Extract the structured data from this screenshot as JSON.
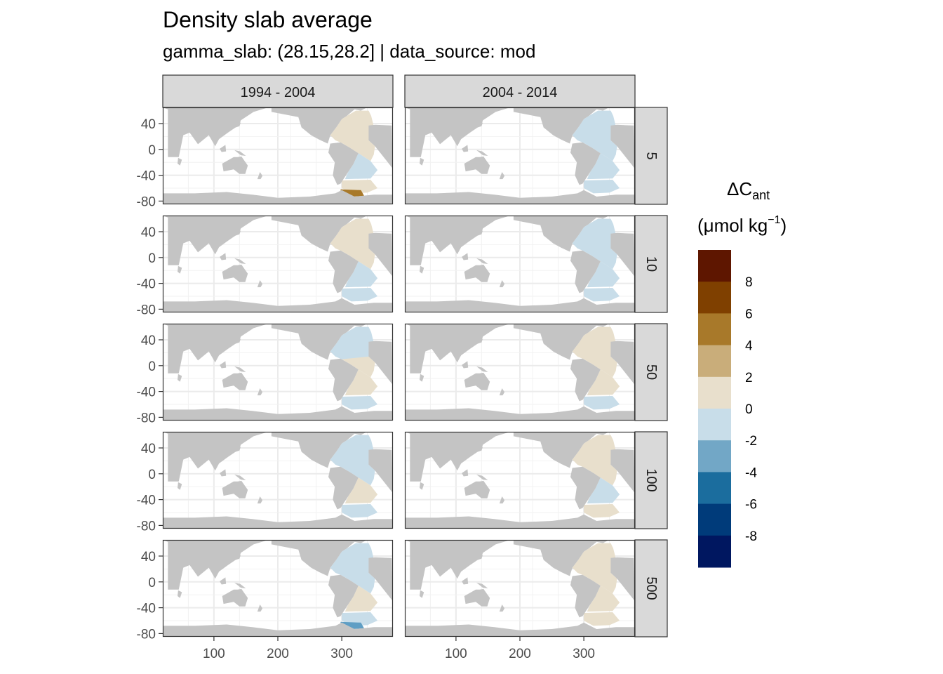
{
  "chart_data": {
    "type": "heatmap",
    "title": "Density slab average",
    "subtitle": "gamma_slab: (28.15,28.2] | data_source: mod",
    "facet_columns": [
      "1994 - 2004",
      "2004 - 2014"
    ],
    "facet_rows": [
      "5",
      "10",
      "50",
      "100",
      "500"
    ],
    "x_ticks": [
      100,
      200,
      300
    ],
    "y_ticks": [
      40,
      0,
      -40,
      -80
    ],
    "y_tick_labels": [
      "40",
      "0",
      "-40",
      "-80"
    ],
    "xlim": [
      20,
      380
    ],
    "ylim": [
      -85,
      65
    ],
    "grid": true,
    "legend": {
      "title_main": "ΔC",
      "title_sub": "ant",
      "unit_main": "(μmol kg",
      "unit_sup": "−1",
      "unit_end": ")",
      "position": "right",
      "breaks": [
        8,
        6,
        4,
        2,
        0,
        -2,
        -4,
        -6,
        -8
      ],
      "break_labels": [
        "8",
        "6",
        "4",
        "2",
        "0",
        "-2",
        "-4",
        "-6",
        "-8"
      ],
      "colors": [
        "#5e1600",
        "#7f4000",
        "#a8792a",
        "#c9ad7a",
        "#e8dfcc",
        "#c8dde9",
        "#72a7c6",
        "#1b6d9e",
        "#003b7a",
        "#001760"
      ]
    },
    "panels": [
      {
        "column": "1994 - 2004",
        "row": "5",
        "north": "c_pos",
        "mid": "c_pos",
        "south": "c_neg",
        "sofar": "c_pos",
        "extra": "c_strong_pos"
      },
      {
        "column": "2004 - 2014",
        "row": "5",
        "north": "c_neg",
        "mid": "c_neg",
        "south": "c_neg",
        "sofar": "c_neg",
        "extra": ""
      },
      {
        "column": "1994 - 2004",
        "row": "10",
        "north": "c_pos",
        "mid": "c_pos",
        "south": "c_neg",
        "sofar": "c_neg",
        "extra": ""
      },
      {
        "column": "2004 - 2014",
        "row": "10",
        "north": "c_neg",
        "mid": "c_neg",
        "south": "c_neg",
        "sofar": "c_neg",
        "extra": ""
      },
      {
        "column": "1994 - 2004",
        "row": "50",
        "north": "c_neg",
        "mid": "c_pos",
        "south": "c_pos",
        "sofar": "c_neg",
        "extra": ""
      },
      {
        "column": "2004 - 2014",
        "row": "50",
        "north": "c_pos",
        "mid": "c_pos",
        "south": "c_pos",
        "sofar": "c_neg",
        "extra": ""
      },
      {
        "column": "1994 - 2004",
        "row": "100",
        "north": "c_neg",
        "mid": "c_neg",
        "south": "c_pos",
        "sofar": "c_neg",
        "extra": ""
      },
      {
        "column": "2004 - 2014",
        "row": "100",
        "north": "c_pos",
        "mid": "c_pos",
        "south": "c_neg",
        "sofar": "c_pos",
        "extra": ""
      },
      {
        "column": "1994 - 2004",
        "row": "500",
        "north": "c_neg",
        "mid": "c_neg",
        "south": "c_pos",
        "sofar": "c_neg",
        "extra": "c_mid_neg"
      },
      {
        "column": "2004 - 2014",
        "row": "500",
        "north": "c_pos",
        "mid": "c_pos",
        "south": "c_pos",
        "sofar": "c_pos",
        "extra": ""
      }
    ],
    "palette": {
      "land": "#c4c4c4",
      "c_pos": "#e8dfcc",
      "c_neg": "#c8dde9",
      "c_strong_pos": "#a8792a",
      "c_mid_neg": "#5f9ec4",
      "strip": "#d9d9d9"
    }
  }
}
